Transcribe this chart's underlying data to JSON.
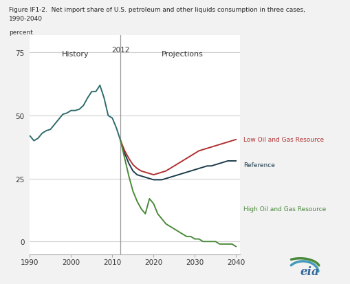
{
  "title_line1": "Figure IF1-2.  Net import share of U.S. petroleum and other liquids consumption in three cases,",
  "title_line2": "1990-2040",
  "ylabel": "percent",
  "history_label": "History",
  "projections_label": "Projections",
  "divider_year": 2012,
  "divider_label": "2012",
  "xlim": [
    1990,
    2041
  ],
  "ylim": [
    -5,
    82
  ],
  "yticks": [
    0,
    25,
    50,
    75
  ],
  "xticks": [
    1990,
    2000,
    2010,
    2020,
    2030,
    2040
  ],
  "xtick_labels": [
    "1990",
    "2000",
    "2010",
    "2020",
    "2030",
    "2040"
  ],
  "bg_color": "#f2f2f2",
  "plot_bg_color": "#ffffff",
  "grid_color": "#cccccc",
  "series_color": "#2e6b6b",
  "low_color": "#b03030",
  "ref_color": "#1a3a4a",
  "high_color": "#4a8a3a",
  "legend_low": "Low Oil and Gas Resource",
  "legend_ref": "Reference",
  "legend_high": "High Oil and Gas Resource",
  "history": {
    "years": [
      1990,
      1991,
      1992,
      1993,
      1994,
      1995,
      1996,
      1997,
      1998,
      1999,
      2000,
      2001,
      2002,
      2003,
      2004,
      2005,
      2006,
      2007,
      2008,
      2009,
      2010,
      2011,
      2012
    ],
    "values": [
      42,
      40,
      41,
      43,
      44,
      44.5,
      46.5,
      48.5,
      50.5,
      51,
      52,
      52,
      52.5,
      54,
      57,
      59.5,
      59.5,
      62,
      57,
      50,
      49,
      45,
      40
    ]
  },
  "reference": {
    "years": [
      2012,
      2013,
      2014,
      2015,
      2016,
      2017,
      2018,
      2019,
      2020,
      2021,
      2022,
      2023,
      2024,
      2025,
      2026,
      2027,
      2028,
      2029,
      2030,
      2031,
      2032,
      2033,
      2034,
      2035,
      2036,
      2037,
      2038,
      2039,
      2040
    ],
    "values": [
      40,
      35,
      31,
      28,
      26.5,
      26,
      25.5,
      25,
      24.5,
      24.5,
      24.5,
      25,
      25.5,
      26,
      26.5,
      27,
      27.5,
      28,
      28.5,
      29,
      29.5,
      30,
      30,
      30.5,
      31,
      31.5,
      32,
      32,
      32
    ]
  },
  "low": {
    "years": [
      2012,
      2013,
      2014,
      2015,
      2016,
      2017,
      2018,
      2019,
      2020,
      2021,
      2022,
      2023,
      2024,
      2025,
      2026,
      2027,
      2028,
      2029,
      2030,
      2031,
      2032,
      2033,
      2034,
      2035,
      2036,
      2037,
      2038,
      2039,
      2040
    ],
    "values": [
      40,
      36,
      33,
      30.5,
      29,
      28,
      27.5,
      27,
      26.5,
      27,
      27.5,
      28,
      29,
      30,
      31,
      32,
      33,
      34,
      35,
      36,
      36.5,
      37,
      37.5,
      38,
      38.5,
      39,
      39.5,
      40,
      40.5
    ]
  },
  "high": {
    "years": [
      2012,
      2013,
      2014,
      2015,
      2016,
      2017,
      2018,
      2019,
      2020,
      2021,
      2022,
      2023,
      2024,
      2025,
      2026,
      2027,
      2028,
      2029,
      2030,
      2031,
      2032,
      2033,
      2034,
      2035,
      2036,
      2037,
      2038,
      2039,
      2040
    ],
    "values": [
      40,
      33,
      26,
      20,
      16,
      13,
      11,
      17,
      15,
      11,
      9,
      7,
      6,
      5,
      4,
      3,
      2,
      2,
      1,
      1,
      0,
      0,
      0,
      0,
      -1,
      -1,
      -1,
      -1,
      -2
    ]
  }
}
